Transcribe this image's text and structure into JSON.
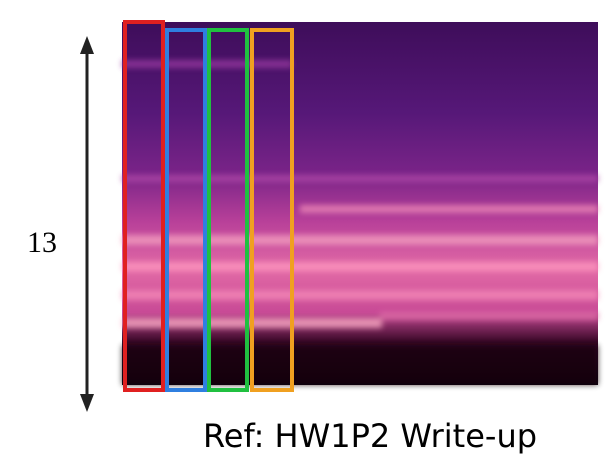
{
  "label": "13",
  "caption": "Ref: HW1P2 Write-up"
}
